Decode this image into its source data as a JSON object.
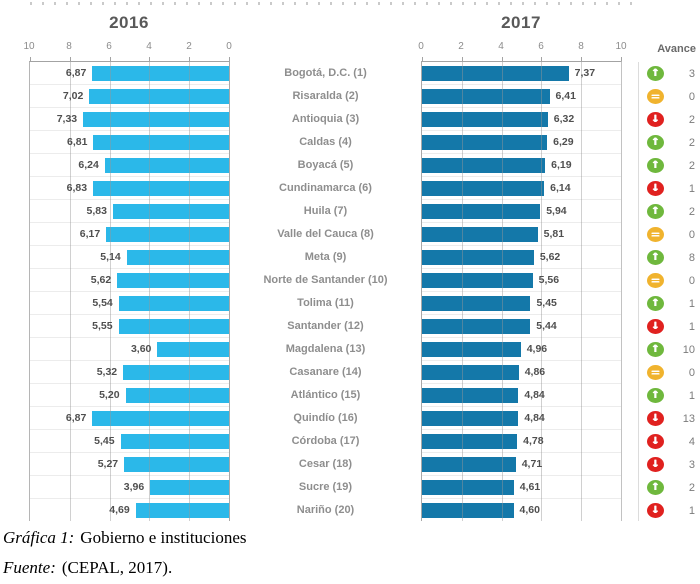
{
  "chart_data": {
    "type": "bar",
    "orientation": "horizontal-mirrored",
    "categories": [
      "Bogotá, D.C. (1)",
      "Risaralda (2)",
      "Antioquia (3)",
      "Caldas (4)",
      "Boyacá (5)",
      "Cundinamarca (6)",
      "Huila (7)",
      "Valle del Cauca (8)",
      "Meta (9)",
      "Norte de Santander (10)",
      "Tolima (11)",
      "Santander (12)",
      "Magdalena (13)",
      "Casanare (14)",
      "Atlántico (15)",
      "Quindío (16)",
      "Córdoba (17)",
      "Cesar (18)",
      "Sucre (19)",
      "Nariño (20)"
    ],
    "series": [
      {
        "name": "2016",
        "values": [
          6.87,
          7.02,
          7.33,
          6.81,
          6.24,
          6.83,
          5.83,
          6.17,
          5.14,
          5.62,
          5.54,
          5.55,
          3.6,
          5.32,
          5.2,
          6.87,
          5.45,
          5.27,
          3.96,
          4.69
        ]
      },
      {
        "name": "2017",
        "values": [
          7.37,
          6.41,
          6.32,
          6.29,
          6.19,
          6.14,
          5.94,
          5.81,
          5.62,
          5.56,
          5.45,
          5.44,
          4.96,
          4.86,
          4.84,
          4.84,
          4.78,
          4.71,
          4.61,
          4.6
        ]
      }
    ],
    "avance": {
      "header": "Avance",
      "values": [
        3,
        0,
        2,
        2,
        2,
        1,
        2,
        0,
        8,
        0,
        1,
        1,
        10,
        0,
        1,
        13,
        4,
        3,
        2,
        1
      ],
      "directions": [
        "up",
        "eq",
        "down",
        "up",
        "up",
        "down",
        "up",
        "eq",
        "up",
        "eq",
        "up",
        "down",
        "up",
        "eq",
        "up",
        "down",
        "down",
        "down",
        "up",
        "down"
      ]
    },
    "xlim": [
      0,
      10
    ],
    "ticks_left": [
      10,
      8,
      6,
      4,
      2,
      0
    ],
    "ticks_right": [
      0,
      2,
      4,
      6,
      8,
      10
    ],
    "value_decimal_separator": ",",
    "grid": true,
    "colors": {
      "bar_2016": "#2BB8E9",
      "bar_2017": "#1478A9",
      "up": "#6FB83D",
      "eq": "#F0B32E",
      "down": "#E0211F"
    }
  },
  "caption": {
    "figure_label": "Gráfica 1:",
    "figure_text": "Gobierno e instituciones",
    "source_label": "Fuente:",
    "source_text": "(CEPAL, 2017)."
  }
}
